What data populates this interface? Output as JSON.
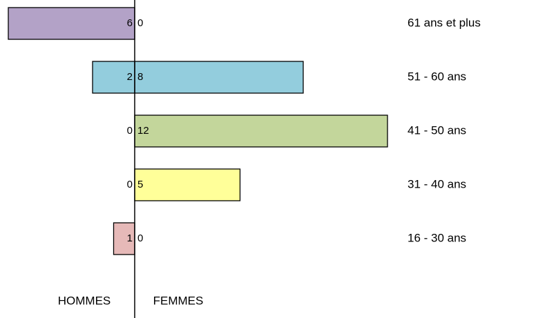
{
  "chart_data": {
    "type": "pyramid",
    "categories": [
      "61 ans et plus",
      "51 - 60 ans",
      "41 - 50 ans",
      "31 - 40 ans",
      "16 - 30 ans"
    ],
    "colors": [
      "#b3a2c7",
      "#93cddd",
      "#c3d69b",
      "#ffff99",
      "#e6b9b8"
    ],
    "series": [
      {
        "name": "HOMMES",
        "values": [
          6,
          2,
          0,
          0,
          1
        ]
      },
      {
        "name": "FEMMES",
        "values": [
          0,
          8,
          12,
          5,
          0
        ]
      }
    ]
  }
}
